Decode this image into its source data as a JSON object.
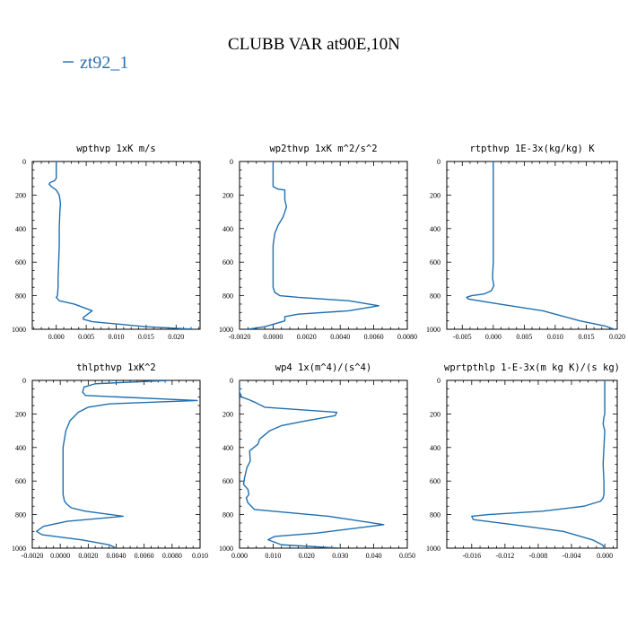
{
  "figure": {
    "title": "CLUBB VAR at90E,10N",
    "legend": {
      "label": "zt92_1",
      "color": "#1f6fb0"
    }
  },
  "chart_data": [
    {
      "type": "line",
      "title": "wpthvp  1xK m/s",
      "xlim": [
        -0.004,
        0.024
      ],
      "ylim": [
        1000,
        0
      ],
      "xticks": [
        0.0,
        0.005,
        0.01,
        0.015,
        0.02
      ],
      "xticklabels": [
        "0.000",
        "0.005",
        "0.010",
        "0.015",
        "0.020"
      ],
      "yticks": [
        0,
        200,
        400,
        600,
        800,
        1000
      ],
      "yticklabels": [
        "0",
        "200",
        "400",
        "600",
        "800",
        "1000"
      ],
      "series": [
        {
          "name": "zt92_1",
          "x": [
            0.0,
            0.0,
            0.0,
            -0.0003,
            -0.001,
            -0.0012,
            -0.0008,
            0.0,
            0.0005,
            0.0007,
            0.0006,
            0.0005,
            0.0005,
            0.0004,
            0.0003,
            0.0003,
            0.0002,
            0.0,
            0.0005,
            0.003,
            0.006,
            0.0045,
            0.0045,
            0.006,
            0.015,
            0.023
          ],
          "y": [
            0,
            60,
            100,
            115,
            125,
            135,
            150,
            170,
            200,
            250,
            300,
            400,
            500,
            600,
            700,
            750,
            800,
            810,
            830,
            850,
            890,
            930,
            940,
            955,
            985,
            1000
          ]
        }
      ]
    },
    {
      "type": "line",
      "title": "wp2thvp  1xK m^2/s^2",
      "xlim": [
        -0.002,
        0.008
      ],
      "ylim": [
        1000,
        0
      ],
      "xticks": [
        -0.002,
        0.0,
        0.002,
        0.004,
        0.006,
        0.008
      ],
      "xticklabels": [
        "-0.0020",
        "0.0000",
        "0.0020",
        "0.0040",
        "0.0060",
        "0.0080"
      ],
      "yticks": [
        0,
        200,
        400,
        600,
        800,
        1000
      ],
      "yticklabels": [
        "0",
        "200",
        "400",
        "600",
        "800",
        "1000"
      ],
      "series": [
        {
          "name": "zt92_1",
          "x": [
            0.0,
            0.0,
            0.0003,
            0.0007,
            0.0007,
            0.0008,
            0.0006,
            0.0003,
            0.0001,
            0.0,
            0.0,
            0.0,
            0.0,
            0.0001,
            0.0004,
            0.0015,
            0.0045,
            0.0063,
            0.0045,
            0.0015,
            0.0007,
            0.0007,
            -0.0005,
            -0.0015
          ],
          "y": [
            0,
            150,
            165,
            170,
            230,
            270,
            330,
            380,
            430,
            500,
            600,
            700,
            750,
            780,
            800,
            810,
            830,
            860,
            890,
            910,
            925,
            950,
            985,
            1000
          ]
        }
      ]
    },
    {
      "type": "line",
      "title": "rtpthvp  1E-3x(kg/kg) K",
      "xlim": [
        -0.0075,
        0.02
      ],
      "ylim": [
        1000,
        0
      ],
      "xticks": [
        -0.005,
        0.0,
        0.005,
        0.01,
        0.015,
        0.02
      ],
      "xticklabels": [
        "-0.005",
        "0.000",
        "0.005",
        "0.010",
        "0.015",
        "0.020"
      ],
      "yticks": [
        0,
        200,
        400,
        600,
        800,
        1000
      ],
      "yticklabels": [
        "0",
        "200",
        "400",
        "600",
        "800",
        "1000"
      ],
      "series": [
        {
          "name": "zt92_1",
          "x": [
            0.0,
            0.0,
            0.0,
            0.0,
            -0.0001,
            -0.0001,
            0.0,
            0.0001,
            -0.0003,
            -0.0015,
            -0.0035,
            -0.0043,
            -0.004,
            0.001,
            0.008,
            0.011,
            0.014,
            0.018,
            0.0195
          ],
          "y": [
            0,
            200,
            400,
            600,
            680,
            700,
            720,
            740,
            770,
            790,
            800,
            810,
            820,
            850,
            890,
            920,
            950,
            980,
            1000
          ]
        }
      ]
    },
    {
      "type": "line",
      "title": "thlpthvp  1xK^2",
      "xlim": [
        -0.002,
        0.01
      ],
      "ylim": [
        1000,
        0
      ],
      "xticks": [
        -0.002,
        0.0,
        0.002,
        0.004,
        0.006,
        0.008,
        0.01
      ],
      "xticklabels": [
        "-0.0020",
        "0.0000",
        "0.0020",
        "0.0040",
        "0.0060",
        "0.0080",
        "0.010"
      ],
      "yticks": [
        0,
        200,
        400,
        600,
        800,
        1000
      ],
      "yticklabels": [
        "0",
        "200",
        "400",
        "600",
        "800",
        "1000"
      ],
      "series": [
        {
          "name": "zt92_1",
          "x": [
            0.0078,
            0.0025,
            0.0017,
            0.0016,
            0.0018,
            0.0098,
            0.0035,
            0.002,
            0.0013,
            0.0007,
            0.0004,
            0.0002,
            0.0002,
            0.0002,
            0.0002,
            0.0003,
            0.0005,
            0.0008,
            0.0018,
            0.0045,
            0.0005,
            -0.0012,
            -0.0017,
            -0.0013,
            0.0015,
            0.0035,
            0.004
          ],
          "y": [
            0,
            20,
            40,
            70,
            90,
            120,
            140,
            160,
            190,
            240,
            300,
            400,
            500,
            600,
            680,
            720,
            740,
            760,
            780,
            810,
            840,
            870,
            900,
            920,
            950,
            980,
            1000
          ]
        }
      ]
    },
    {
      "type": "line",
      "title": "wp4  1x(m^4)/(s^4)",
      "xlim": [
        0.0,
        0.05
      ],
      "ylim": [
        1000,
        0
      ],
      "xticks": [
        0.0,
        0.01,
        0.02,
        0.03,
        0.04,
        0.05
      ],
      "xticklabels": [
        "0.000",
        "0.010",
        "0.020",
        "0.030",
        "0.040",
        "0.050"
      ],
      "yticks": [
        0,
        200,
        400,
        600,
        800,
        1000
      ],
      "yticklabels": [
        "0",
        "200",
        "400",
        "600",
        "800",
        "1000"
      ],
      "series": [
        {
          "name": "zt92_1",
          "x": [
            0.0,
            0.0,
            0.0007,
            0.0028,
            0.0045,
            0.0075,
            0.029,
            0.0285,
            0.02,
            0.0125,
            0.009,
            0.006,
            0.0055,
            0.003,
            0.0032,
            0.0022,
            0.0015,
            0.0012,
            0.0025,
            0.0028,
            0.002,
            0.0025,
            0.0045,
            0.0265,
            0.043,
            0.023,
            0.0105,
            0.0085,
            0.0125,
            0.03
          ],
          "y": [
            0,
            70,
            100,
            115,
            130,
            160,
            190,
            210,
            240,
            270,
            300,
            350,
            380,
            420,
            480,
            520,
            580,
            620,
            650,
            680,
            700,
            730,
            770,
            810,
            860,
            910,
            930,
            950,
            980,
            1000
          ]
        }
      ]
    },
    {
      "type": "line",
      "title": "wprtpthlp  1-E-3x(m kg K)/(s kg)",
      "xlim": [
        -0.019,
        0.0015
      ],
      "ylim": [
        1000,
        0
      ],
      "xticks": [
        -0.016,
        -0.012,
        -0.008,
        -0.004,
        0.0
      ],
      "xticklabels": [
        "-0.016",
        "-0.012",
        "-0.008",
        "-0.004",
        "0.000"
      ],
      "yticks": [
        0,
        200,
        400,
        600,
        800,
        1000
      ],
      "yticklabels": [
        "0",
        "200",
        "400",
        "600",
        "800",
        "1000"
      ],
      "series": [
        {
          "name": "zt92_1",
          "x": [
            0.0,
            0.0,
            0.0,
            -0.0001,
            -0.0002,
            0.0,
            -0.0001,
            -0.0002,
            -0.0001,
            -0.0001,
            -0.0002,
            -0.0005,
            -0.0025,
            -0.0075,
            -0.014,
            -0.016,
            -0.0158,
            -0.011,
            -0.005,
            -0.0015,
            -0.0003,
            0.0
          ],
          "y": [
            0,
            100,
            200,
            220,
            260,
            300,
            400,
            500,
            600,
            680,
            700,
            720,
            750,
            780,
            800,
            810,
            830,
            860,
            900,
            950,
            980,
            1000
          ]
        }
      ]
    }
  ]
}
